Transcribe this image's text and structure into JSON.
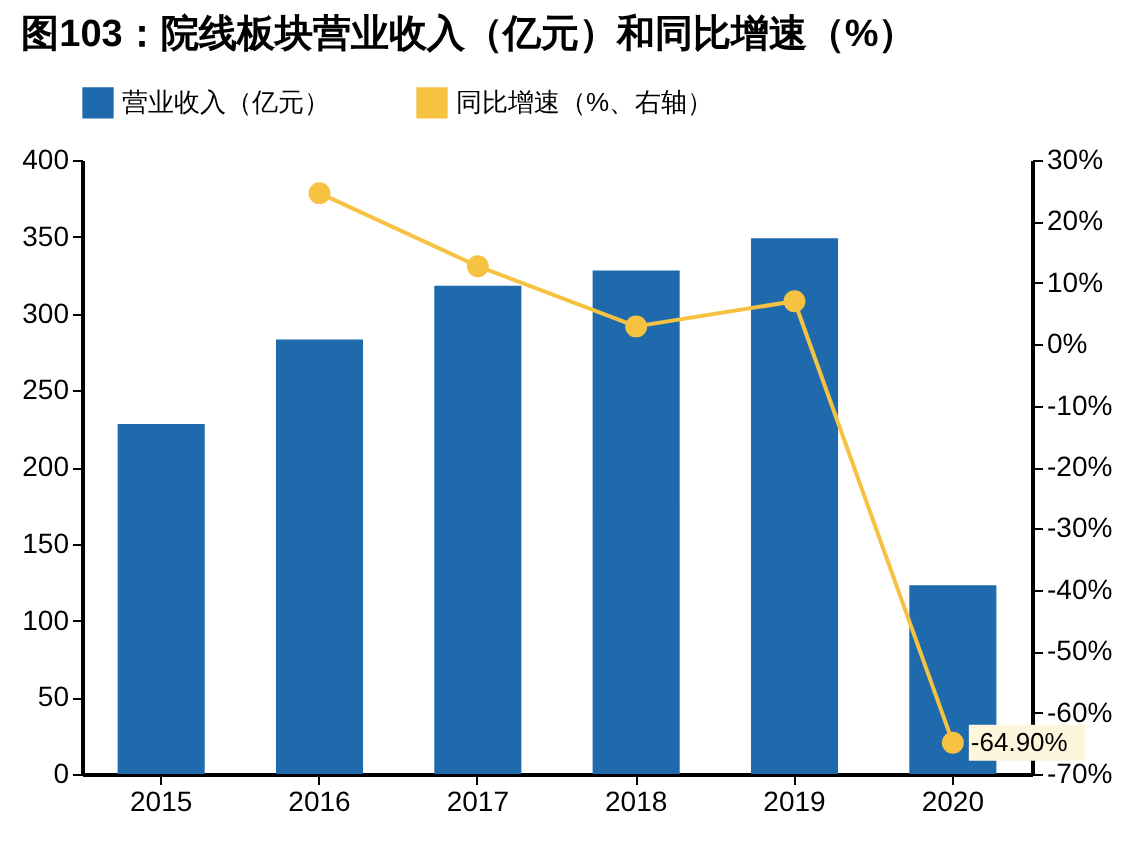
{
  "chart_data": {
    "type": "bar",
    "title": "图103：院线板块营业收入（亿元）和同比增速（%）",
    "categories": [
      "2015",
      "2016",
      "2017",
      "2018",
      "2019",
      "2020"
    ],
    "series": [
      {
        "name": "营业收入（亿元）",
        "color": "#1f6aad",
        "values": [
          228,
          283,
          318,
          328,
          349,
          123
        ]
      },
      {
        "name": "同比增速（%、右轴）",
        "type": "line",
        "axis": "y2",
        "color": "#f5c242",
        "marker": "circle",
        "values": [
          null,
          24.6,
          12.7,
          2.9,
          7.0,
          -64.9
        ],
        "value_labels": [
          null,
          null,
          null,
          null,
          null,
          "-64.90%"
        ]
      }
    ],
    "ylim": [
      0,
      400
    ],
    "yticks": [
      0,
      50,
      100,
      150,
      200,
      250,
      300,
      350,
      400
    ],
    "y2lim": [
      -70,
      30
    ],
    "y2ticks": [
      {
        "value": -70,
        "label": "-70%"
      },
      {
        "value": -60,
        "label": "-60%"
      },
      {
        "value": -50,
        "label": "-50%"
      },
      {
        "value": -40,
        "label": "-40%"
      },
      {
        "value": -30,
        "label": "-30%"
      },
      {
        "value": -20,
        "label": "-20%"
      },
      {
        "value": -10,
        "label": "-10%"
      },
      {
        "value": 0,
        "label": "0%"
      },
      {
        "value": 10,
        "label": "10%"
      },
      {
        "value": 20,
        "label": "20%"
      },
      {
        "value": 30,
        "label": "30%"
      }
    ],
    "legend": "top",
    "grid": false
  }
}
